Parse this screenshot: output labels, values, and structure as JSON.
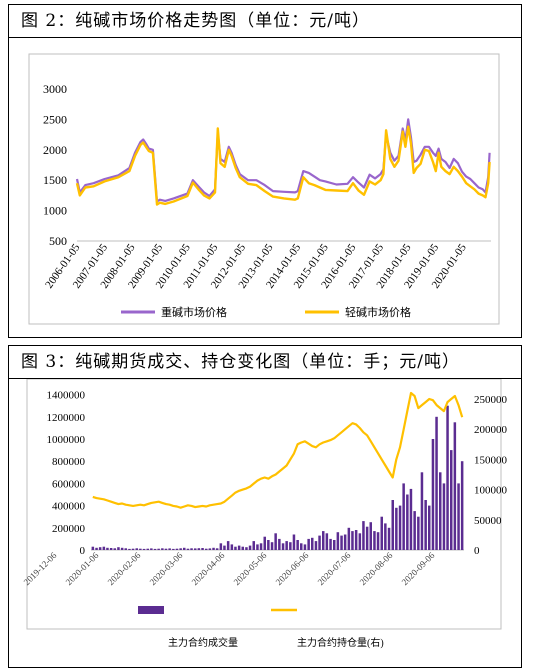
{
  "figure2": {
    "caption": "图 2：纯碱市场价格走势图（单位：元/吨）",
    "chart_data": {
      "type": "line",
      "y_ticks": [
        "3000",
        "2500",
        "2000",
        "1500",
        "1000",
        "500"
      ],
      "ylim": [
        500,
        3000
      ],
      "x_tick_labels": [
        "2006-01-05",
        "2007-01-05",
        "2008-01-05",
        "2009-01-05",
        "2010-01-05",
        "2011-01-05",
        "2012-01-05",
        "2013-01-05",
        "2014-01-05",
        "2015-01-05",
        "2016-01-05",
        "2017-01-05",
        "2018-01-05",
        "2019-01-05",
        "2020-01-05"
      ],
      "x": [
        2006.0,
        2006.1,
        2006.3,
        2006.6,
        2007.0,
        2007.5,
        2007.9,
        2008.1,
        2008.3,
        2008.4,
        2008.5,
        2008.6,
        2008.75,
        2008.9,
        2009.0,
        2009.2,
        2009.5,
        2010.0,
        2010.2,
        2010.4,
        2010.6,
        2010.8,
        2011.0,
        2011.1,
        2011.2,
        2011.35,
        2011.5,
        2011.6,
        2011.75,
        2011.9,
        2012.2,
        2012.5,
        2012.8,
        2013.1,
        2013.5,
        2013.9,
        2014.0,
        2014.2,
        2014.4,
        2014.6,
        2014.8,
        2015.0,
        2015.4,
        2015.8,
        2016.0,
        2016.2,
        2016.4,
        2016.6,
        2016.8,
        2017.0,
        2017.1,
        2017.2,
        2017.35,
        2017.5,
        2017.65,
        2017.8,
        2017.9,
        2018.0,
        2018.1,
        2018.2,
        2018.3,
        2018.45,
        2018.6,
        2018.75,
        2018.9,
        2019.0,
        2019.1,
        2019.2,
        2019.35,
        2019.5,
        2019.65,
        2019.8,
        2019.95,
        2020.1,
        2020.25,
        2020.4,
        2020.55,
        2020.7,
        2020.8,
        2020.9,
        2020.95
      ],
      "series": [
        {
          "name": "重碱市场价格",
          "color": "#9966cc",
          "values": [
            1520,
            1300,
            1420,
            1450,
            1520,
            1580,
            1700,
            1950,
            2130,
            2170,
            2100,
            2020,
            2000,
            1150,
            1180,
            1160,
            1200,
            1280,
            1500,
            1400,
            1300,
            1240,
            1350,
            2280,
            1850,
            1800,
            2050,
            1950,
            1750,
            1600,
            1500,
            1500,
            1420,
            1320,
            1310,
            1300,
            1320,
            1650,
            1620,
            1560,
            1500,
            1480,
            1430,
            1440,
            1550,
            1460,
            1380,
            1590,
            1530,
            1600,
            1680,
            2250,
            1950,
            1820,
            1900,
            2350,
            2150,
            2500,
            2200,
            1800,
            1820,
            1920,
            2050,
            2050,
            1950,
            1900,
            2020,
            1850,
            1800,
            1700,
            1850,
            1780,
            1640,
            1560,
            1520,
            1450,
            1380,
            1350,
            1300,
            1550,
            1950
          ]
        },
        {
          "name": "轻碱市场价格",
          "color": "#ffc000",
          "values": [
            1450,
            1250,
            1380,
            1400,
            1480,
            1550,
            1650,
            1900,
            2080,
            2120,
            2050,
            1980,
            1950,
            1100,
            1130,
            1110,
            1150,
            1240,
            1460,
            1350,
            1250,
            1200,
            1300,
            2350,
            1780,
            1720,
            2000,
            1900,
            1700,
            1550,
            1440,
            1420,
            1320,
            1230,
            1200,
            1180,
            1200,
            1550,
            1450,
            1420,
            1380,
            1340,
            1330,
            1320,
            1450,
            1330,
            1260,
            1480,
            1430,
            1500,
            1600,
            2320,
            1850,
            1720,
            1820,
            2300,
            2050,
            2380,
            2100,
            1620,
            1700,
            1770,
            2000,
            1980,
            1800,
            1650,
            1950,
            1720,
            1650,
            1600,
            1720,
            1650,
            1560,
            1450,
            1400,
            1350,
            1280,
            1250,
            1220,
            1450,
            1800
          ]
        }
      ]
    }
  },
  "figure3": {
    "caption": "图 3：纯碱期货成交、持仓变化图（单位：手；元/吨）",
    "chart_data": {
      "type": "bar+line",
      "left_ticks": [
        "1400000",
        "1200000",
        "1000000",
        "800000",
        "600000",
        "400000",
        "200000",
        "0"
      ],
      "left_lim": [
        0,
        1400000
      ],
      "right_ticks": [
        "250000",
        "200000",
        "150000",
        "100000",
        "50000",
        "0"
      ],
      "right_lim": [
        0,
        260000
      ],
      "x_tick_labels": [
        "2019-12-06",
        "2020-01-06",
        "2020-02-06",
        "2020-03-06",
        "2020-04-06",
        "2020-05-06",
        "2020-06-06",
        "2020-07-06",
        "2020-08-06",
        "2020-09-06"
      ],
      "volume_values": [
        30000,
        20000,
        25000,
        30000,
        20000,
        18000,
        15000,
        25000,
        20000,
        15000,
        10000,
        12000,
        15000,
        12000,
        10000,
        12000,
        14000,
        10000,
        12000,
        15000,
        12000,
        14000,
        10000,
        12000,
        15000,
        20000,
        12000,
        15000,
        14000,
        16000,
        18000,
        12000,
        14000,
        20000,
        15000,
        60000,
        40000,
        80000,
        50000,
        30000,
        40000,
        30000,
        25000,
        40000,
        80000,
        50000,
        60000,
        120000,
        90000,
        70000,
        150000,
        100000,
        60000,
        80000,
        70000,
        140000,
        90000,
        60000,
        50000,
        100000,
        110000,
        80000,
        130000,
        170000,
        150000,
        100000,
        90000,
        160000,
        130000,
        140000,
        200000,
        170000,
        180000,
        150000,
        260000,
        210000,
        250000,
        170000,
        160000,
        300000,
        240000,
        200000,
        450000,
        380000,
        400000,
        600000,
        500000,
        550000,
        350000,
        300000,
        700000,
        450000,
        400000,
        1000000,
        1200000,
        700000,
        600000,
        1300000,
        900000,
        1150000,
        600000,
        800000
      ],
      "open_interest_values": [
        88000,
        86000,
        85000,
        84000,
        82000,
        80000,
        78000,
        76000,
        77000,
        75000,
        74000,
        73000,
        74000,
        75000,
        74000,
        76000,
        78000,
        79000,
        80000,
        78000,
        76000,
        75000,
        73000,
        72000,
        70000,
        72000,
        74000,
        73000,
        71000,
        72000,
        73000,
        72000,
        74000,
        75000,
        76000,
        77000,
        80000,
        85000,
        90000,
        95000,
        98000,
        100000,
        102000,
        105000,
        110000,
        115000,
        118000,
        120000,
        118000,
        122000,
        125000,
        130000,
        135000,
        140000,
        150000,
        160000,
        175000,
        178000,
        180000,
        176000,
        172000,
        170000,
        175000,
        178000,
        180000,
        182000,
        185000,
        190000,
        195000,
        200000,
        205000,
        210000,
        208000,
        202000,
        195000,
        190000,
        180000,
        170000,
        160000,
        150000,
        140000,
        130000,
        120000,
        150000,
        170000,
        200000,
        230000,
        260000,
        255000,
        235000,
        240000,
        245000,
        250000,
        248000,
        240000,
        235000,
        230000,
        245000,
        250000,
        255000,
        240000,
        220000
      ],
      "legend": [
        "主力合约成交量",
        "主力合约持仓量(右)"
      ],
      "colors": {
        "volume": "#5b2c91",
        "open_interest": "#ffc000"
      }
    }
  }
}
